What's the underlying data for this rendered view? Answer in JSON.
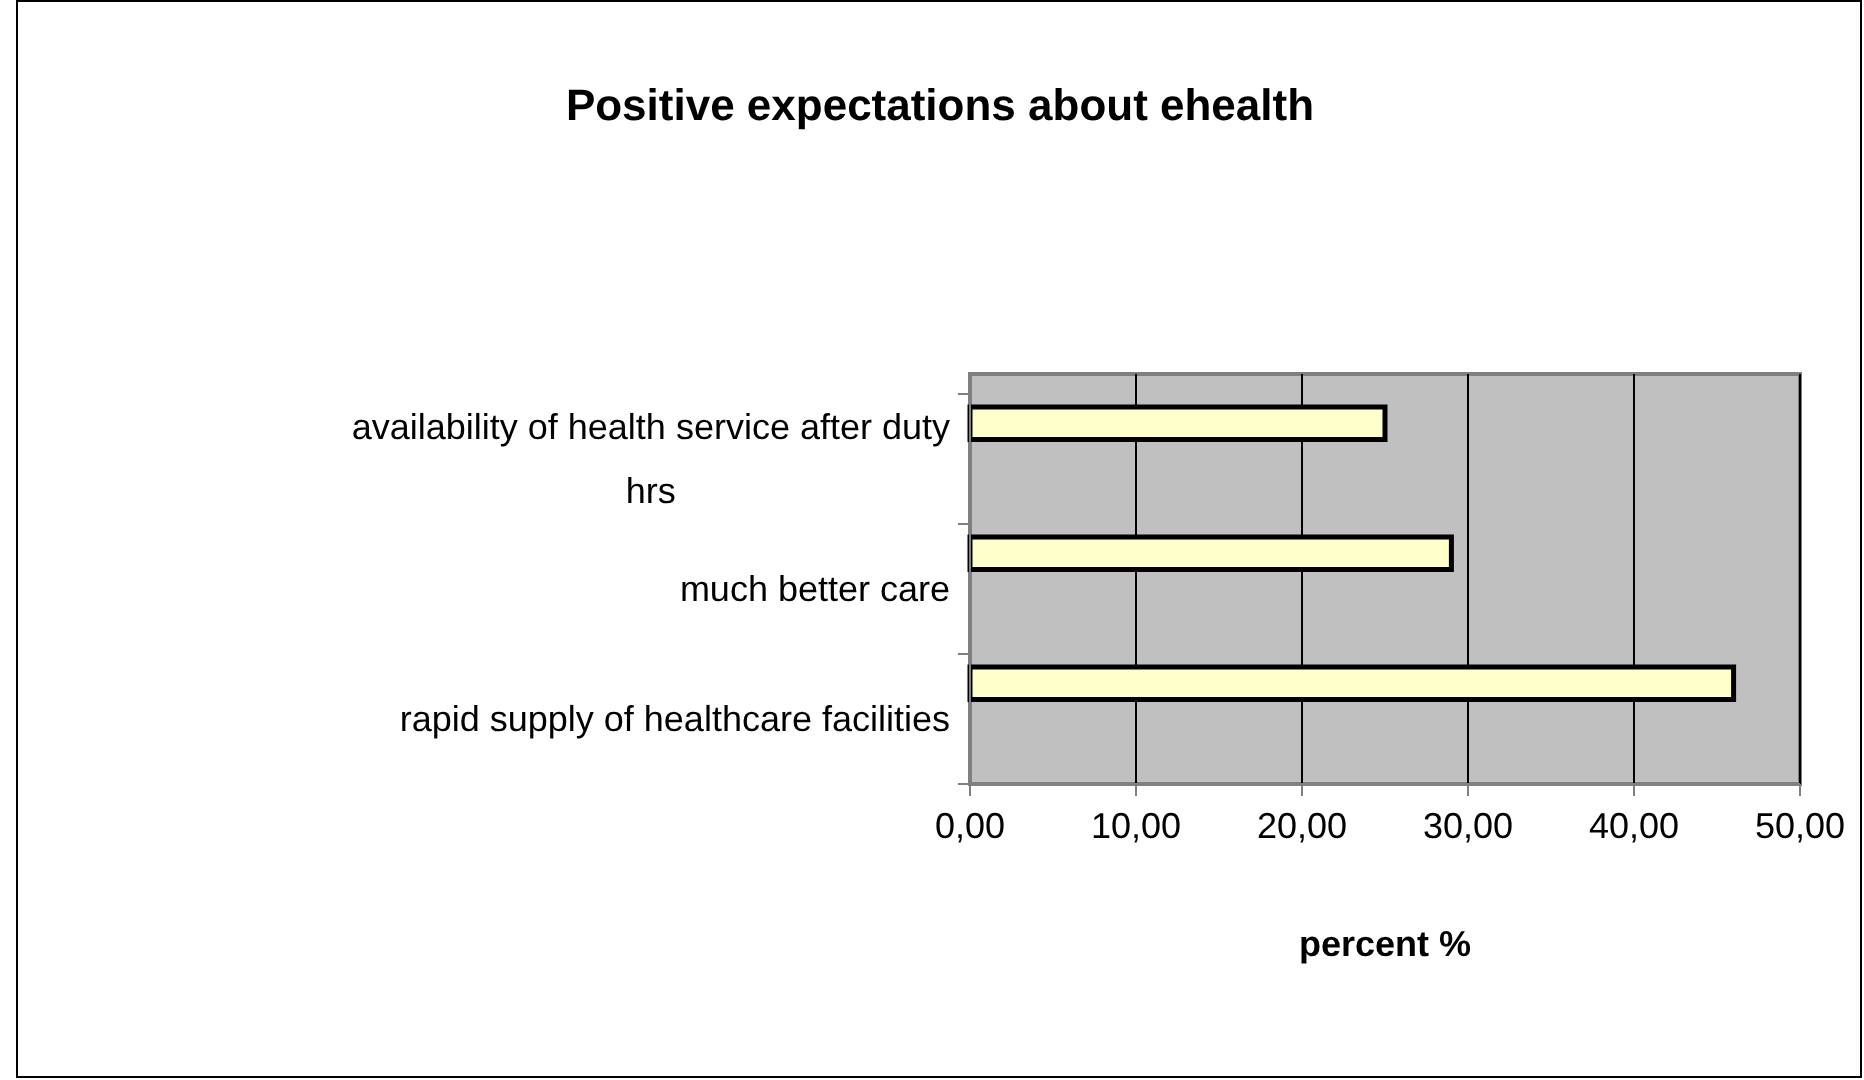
{
  "chart_data": {
    "type": "bar",
    "orientation": "horizontal",
    "title": "Positive expectations about ehealth",
    "xlabel": "percent %",
    "categories": [
      "availability of health service after duty hrs",
      "much better care",
      "rapid supply of healthcare facilities"
    ],
    "values": [
      25,
      29,
      46
    ],
    "color": "#ffffcc",
    "xlim": [
      0,
      50
    ],
    "xticks": [
      {
        "value": 0,
        "label": "0,00"
      },
      {
        "value": 10,
        "label": "10,00"
      },
      {
        "value": 20,
        "label": "20,00"
      },
      {
        "value": 30,
        "label": "30,00"
      },
      {
        "value": 40,
        "label": "40,00"
      },
      {
        "value": 50,
        "label": "50,00"
      }
    ],
    "grid": "x"
  }
}
